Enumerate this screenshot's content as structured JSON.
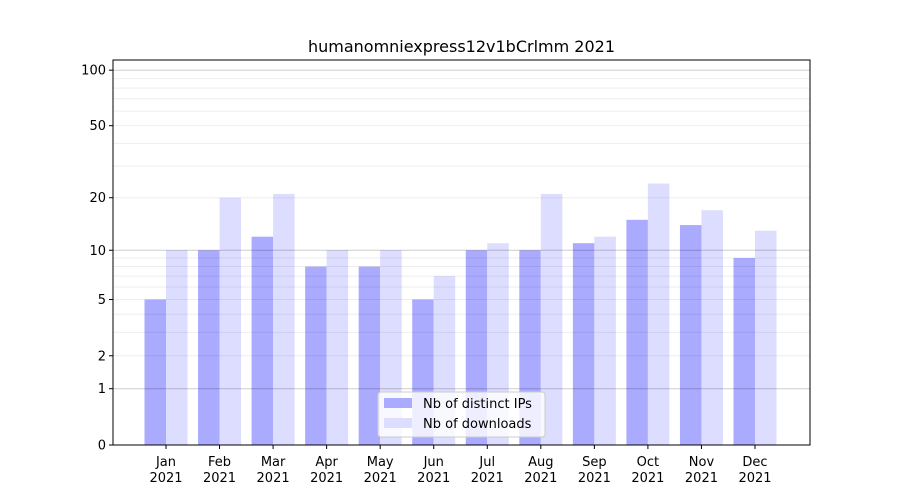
{
  "chart_data": {
    "type": "bar",
    "title": "humanomniexpress12v1bCrlmm 2021",
    "xlabel": "",
    "ylabel": "",
    "yscale": "log(1+y)",
    "ylim": [
      0,
      113.5
    ],
    "yticks": [
      0,
      1,
      2,
      5,
      10,
      20,
      50,
      100
    ],
    "grid": true,
    "legend_position": "bottom-center",
    "categories": [
      "Jan\n2021",
      "Feb\n2021",
      "Mar\n2021",
      "Apr\n2021",
      "May\n2021",
      "Jun\n2021",
      "Jul\n2021",
      "Aug\n2021",
      "Sep\n2021",
      "Oct\n2021",
      "Nov\n2021",
      "Dec\n2021"
    ],
    "series": [
      {
        "name": "Nb of distinct IPs",
        "color": "#aaaaff",
        "values": [
          5,
          10,
          12,
          8,
          8,
          5,
          10,
          10,
          11,
          15,
          14,
          9
        ]
      },
      {
        "name": "Nb of downloads",
        "color": "#ddddff",
        "values": [
          10,
          20,
          21,
          10,
          10,
          7,
          11,
          21,
          12,
          24,
          17,
          13
        ]
      }
    ]
  }
}
